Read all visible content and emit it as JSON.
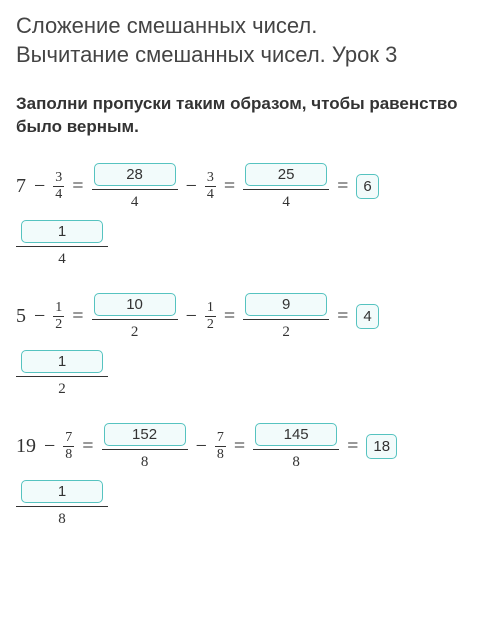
{
  "title_line1": "Сложение смешанных чисел.",
  "title_line2": "Вычитание смешанных чисел. Урок 3",
  "prompt": "Заполни пропуски таким образом, чтобы равенство было верным.",
  "colors": {
    "box_border": "#56c3c0",
    "box_bg": "#f2fbfb",
    "text": "#333333",
    "bg": "#ffffff"
  },
  "rows": [
    {
      "a_whole": "7",
      "frac_num": "3",
      "frac_den": "4",
      "improper_num": "28",
      "improper_den": "4",
      "result_num": "25",
      "result_den": "4",
      "mixed_whole": "6",
      "mixed_num": "1",
      "mixed_den": "4"
    },
    {
      "a_whole": "5",
      "frac_num": "1",
      "frac_den": "2",
      "improper_num": "10",
      "improper_den": "2",
      "result_num": "9",
      "result_den": "2",
      "mixed_whole": "4",
      "mixed_num": "1",
      "mixed_den": "2"
    },
    {
      "a_whole": "19",
      "frac_num": "7",
      "frac_den": "8",
      "improper_num": "152",
      "improper_den": "8",
      "result_num": "145",
      "result_den": "8",
      "mixed_whole": "18",
      "mixed_num": "1",
      "mixed_den": "8"
    }
  ],
  "symbols": {
    "minus": "−",
    "equals": "="
  }
}
